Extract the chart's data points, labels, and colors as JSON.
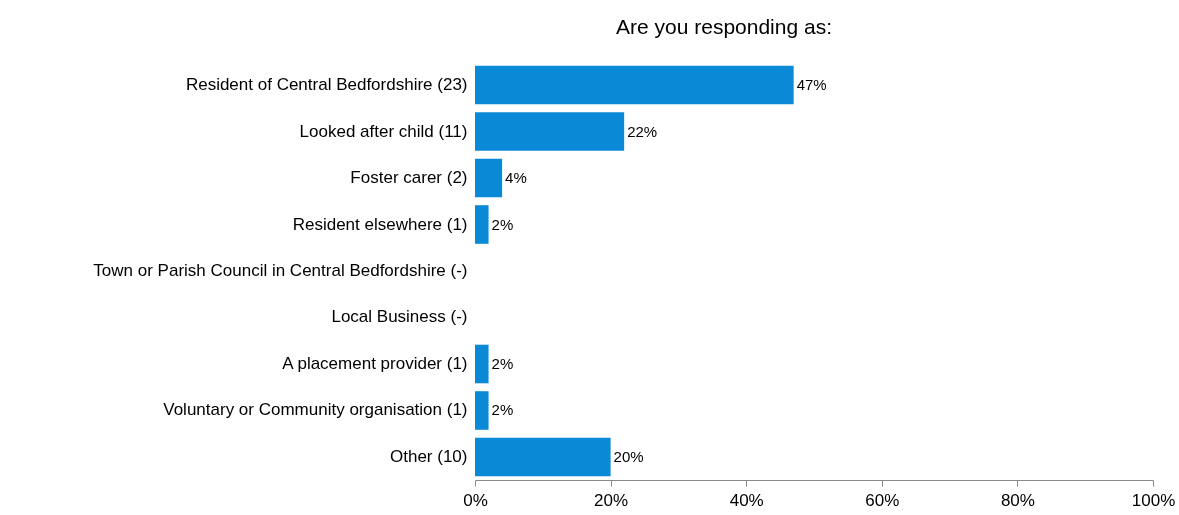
{
  "chart_data": {
    "type": "bar",
    "orientation": "horizontal",
    "title": "Are you responding as:",
    "categories": [
      "Resident of Central Bedfordshire (23)",
      "Looked after child (11)",
      "Foster carer (2)",
      "Resident elsewhere (1)",
      "Town or Parish Council in Central Bedfordshire (-)",
      "Local Business (-)",
      "A placement provider (1)",
      "Voluntary or Community organisation (1)",
      "Other (10)"
    ],
    "values": [
      47,
      22,
      4,
      2,
      null,
      null,
      2,
      2,
      20
    ],
    "value_labels": [
      "47%",
      "22%",
      "4%",
      "2%",
      null,
      null,
      "2%",
      "2%",
      "20%"
    ],
    "color": "#0a8ad6",
    "xlim": [
      0,
      100
    ],
    "xticks": [
      {
        "value": 0,
        "label": "0%"
      },
      {
        "value": 20,
        "label": "20%"
      },
      {
        "value": 40,
        "label": "40%"
      },
      {
        "value": 60,
        "label": "60%"
      },
      {
        "value": 80,
        "label": "80%"
      },
      {
        "value": 100,
        "label": "100%"
      }
    ],
    "grid": false
  }
}
